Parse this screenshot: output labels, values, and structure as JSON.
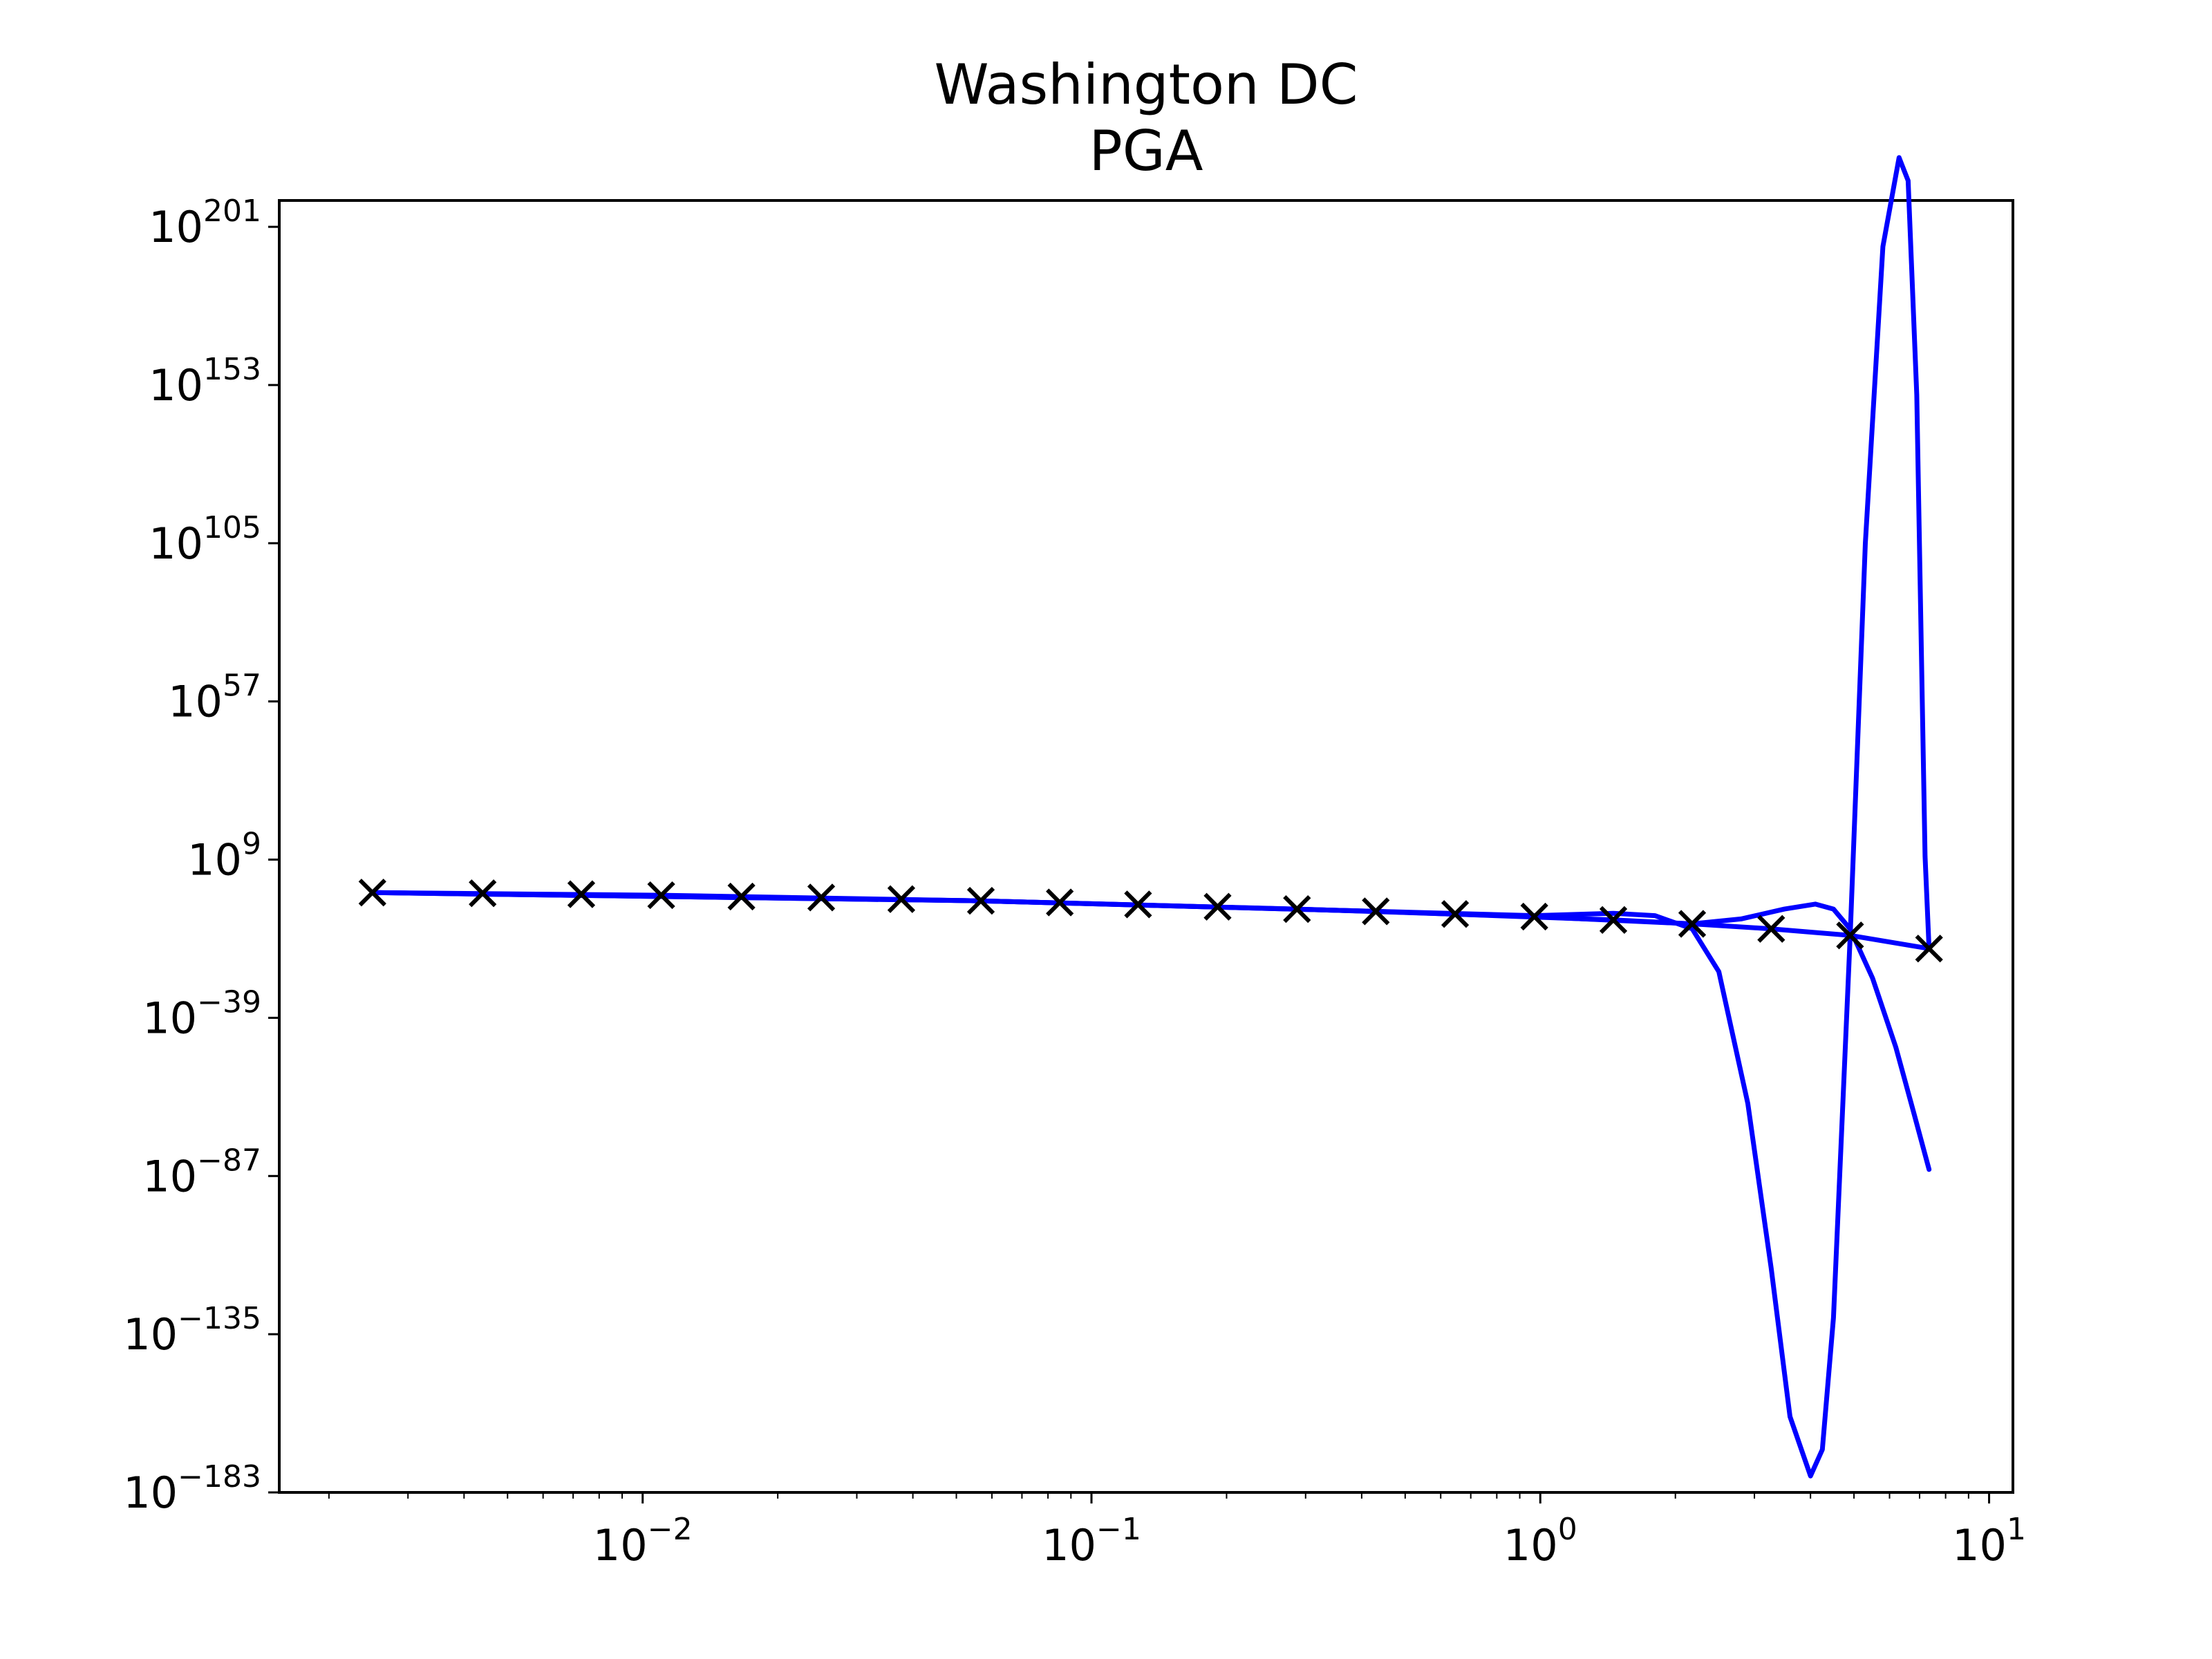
{
  "chart_data": {
    "type": "line",
    "title": "Washington DC",
    "subtitle": "PGA",
    "xlabel": "",
    "ylabel": "",
    "xscale": "log",
    "yscale": "log",
    "xlim": [
      0.00155,
      11.3
    ],
    "ylim_exponent": [
      -183,
      209
    ],
    "x_ticks": [
      {
        "base": "10",
        "exp": "−2",
        "exp_value": -2
      },
      {
        "base": "10",
        "exp": "−1",
        "exp_value": -1
      },
      {
        "base": "10",
        "exp": "0",
        "exp_value": 0
      },
      {
        "base": "10",
        "exp": "1",
        "exp_value": 1
      }
    ],
    "y_ticks": [
      {
        "base": "10",
        "exp": "201",
        "exp_value": 201
      },
      {
        "base": "10",
        "exp": "153",
        "exp_value": 153
      },
      {
        "base": "10",
        "exp": "105",
        "exp_value": 105
      },
      {
        "base": "10",
        "exp": "57",
        "exp_value": 57
      },
      {
        "base": "10",
        "exp": "9",
        "exp_value": 9
      },
      {
        "base": "10",
        "exp": "−39",
        "exp_value": -39
      },
      {
        "base": "10",
        "exp": "−87",
        "exp_value": -87
      },
      {
        "base": "10",
        "exp": "−135",
        "exp_value": -135
      },
      {
        "base": "10",
        "exp": "−183",
        "exp_value": -183
      }
    ],
    "grid": false,
    "legend": "none",
    "markers": {
      "color": "#000000",
      "symbol": "x",
      "x": [
        0.0025,
        0.0044,
        0.0073,
        0.011,
        0.0166,
        0.025,
        0.0377,
        0.0567,
        0.085,
        0.127,
        0.191,
        0.287,
        0.43,
        0.646,
        0.97,
        1.455,
        2.18,
        3.27,
        4.9,
        7.35
      ],
      "y_exponent": [
        -1.0,
        -1.2,
        -1.5,
        -1.8,
        -2.2,
        -2.5,
        -3.0,
        -3.5,
        -4.0,
        -4.6,
        -5.3,
        -6.0,
        -6.7,
        -7.5,
        -8.3,
        -9.3,
        -10.5,
        -12.0,
        -14.0,
        -18.0
      ]
    },
    "series": [
      {
        "color": "#0000ff",
        "style": "line",
        "x": [
          0.0025,
          0.011,
          0.0567,
          0.287,
          0.97,
          2.18,
          3.27,
          4.9,
          7.35
        ],
        "y_exponent": [
          -1.0,
          -1.8,
          -3.5,
          -6.0,
          -8.3,
          -10.5,
          -12.0,
          -14.0,
          -18.0
        ]
      },
      {
        "color": "#0000ff",
        "style": "line",
        "x": [
          0.0025,
          0.0567,
          0.43,
          0.97,
          1.455,
          1.8,
          2.18,
          2.5,
          2.9,
          3.27,
          3.6,
          4.0,
          4.25,
          4.5,
          4.9,
          5.3,
          5.8,
          6.3,
          6.6,
          6.9,
          7.2,
          7.35
        ],
        "y_exponent": [
          -1.0,
          -3.5,
          -6.7,
          -8.0,
          -7.3,
          -8.0,
          -12.0,
          -25.0,
          -65.0,
          -115.0,
          -160.0,
          -178.0,
          -170.0,
          -130.0,
          -15.0,
          105.0,
          195.0,
          222.0,
          215.0,
          150.0,
          10.0,
          -18.0
        ]
      },
      {
        "color": "#0000ff",
        "style": "line",
        "x": [
          0.0025,
          0.0567,
          0.43,
          1.455,
          2.18,
          2.8,
          3.5,
          4.1,
          4.5,
          4.9,
          5.5,
          6.2,
          6.8,
          7.35
        ],
        "y_exponent": [
          -1.0,
          -3.5,
          -6.7,
          -9.3,
          -10.5,
          -9.0,
          -6.0,
          -4.5,
          -6.0,
          -12.0,
          -27.0,
          -48.0,
          -68.0,
          -85.0
        ]
      }
    ]
  }
}
